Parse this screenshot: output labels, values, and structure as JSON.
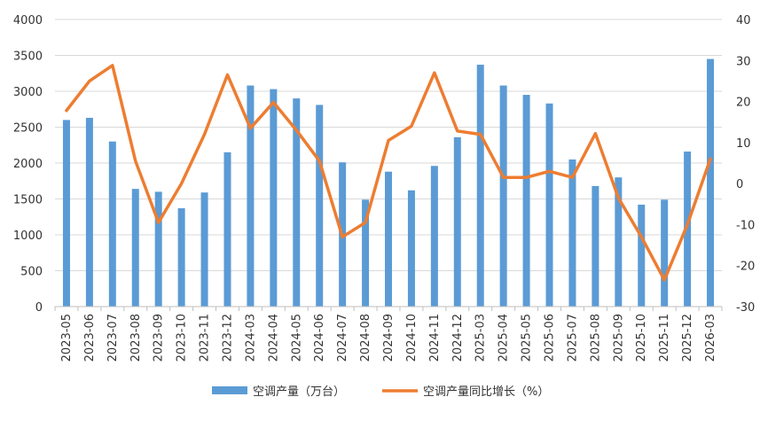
{
  "chart_data": {
    "type": "bar+line",
    "categories": [
      "2023-05",
      "2023-06",
      "2023-07",
      "2023-08",
      "2023-09",
      "2023-10",
      "2023-11",
      "2023-12",
      "2024-03",
      "2024-04",
      "2024-05",
      "2024-06",
      "2024-07",
      "2024-08",
      "2024-09",
      "2024-10",
      "2024-11",
      "2024-12",
      "2025-03",
      "2025-04",
      "2025-05",
      "2025-06",
      "2025-07",
      "2025-08",
      "2025-09",
      "2025-10",
      "2025-11",
      "2025-12",
      "2026-03"
    ],
    "series": [
      {
        "name": "空调产量（万台）",
        "type": "bar",
        "axis": "left",
        "color": "#5B9BD5",
        "values": [
          2600,
          2630,
          2300,
          1640,
          1600,
          1370,
          1590,
          2150,
          3080,
          3030,
          2900,
          2810,
          2010,
          1490,
          1880,
          1620,
          1960,
          2360,
          3370,
          3080,
          2950,
          2830,
          2050,
          1680,
          1800,
          1420,
          1490,
          2160,
          3450
        ]
      },
      {
        "name": "空调产量同比增长（%）",
        "type": "line",
        "axis": "right",
        "color": "#ED7D31",
        "values": [
          17.8,
          25,
          28.8,
          5.5,
          -9.5,
          0,
          12,
          26.5,
          13.5,
          19.8,
          13,
          5.5,
          -13,
          -9.5,
          10.5,
          14,
          27,
          12.8,
          12,
          1.5,
          1.5,
          3,
          1.5,
          12.2,
          -3.5,
          -13,
          -23.5,
          -10,
          6
        ]
      }
    ],
    "y_left": {
      "min": 0,
      "max": 4000,
      "ticks": [
        0,
        500,
        1000,
        1500,
        2000,
        2500,
        3000,
        3500,
        4000
      ]
    },
    "y_right": {
      "min": -30,
      "max": 40,
      "ticks": [
        -30,
        -20,
        -10,
        0,
        10,
        20,
        30,
        40
      ]
    },
    "grid": true,
    "legend_position": "bottom"
  }
}
